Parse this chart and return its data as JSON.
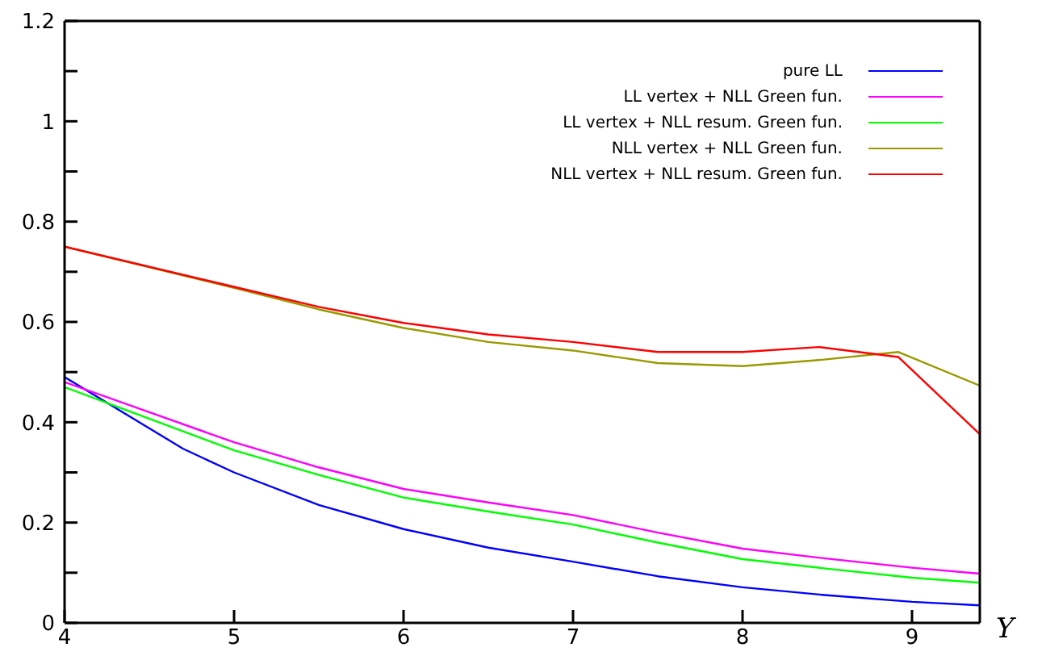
{
  "chart_data": {
    "type": "line",
    "xlabel": "Y",
    "xlim": [
      4,
      9.4
    ],
    "xticks": [
      4,
      5,
      6,
      7,
      8,
      9
    ],
    "ylim": [
      0,
      1.2
    ],
    "yticks": [
      0,
      {
        "value": 0.1,
        "label": null
      },
      0.2,
      {
        "value": 0.3,
        "label": null
      },
      0.4,
      {
        "value": 0.5,
        "label": null
      },
      0.6,
      {
        "value": 0.7,
        "label": null
      },
      0.8,
      {
        "value": 0.9,
        "label": null
      },
      1,
      {
        "value": 1.1,
        "label": null
      },
      1.2
    ],
    "legend": "top right",
    "marker": "none",
    "line_style": "solid",
    "series": [
      {
        "name": "pure LL",
        "color": "#0000ff",
        "x": [
          4,
          4.7,
          5,
          5.5,
          6,
          6.5,
          7,
          7.5,
          8,
          8.5,
          9,
          9.4
        ],
        "values": [
          0.49,
          0.347,
          0.3,
          0.235,
          0.187,
          0.15,
          0.122,
          0.093,
          0.071,
          0.055,
          0.042,
          0.035
        ]
      },
      {
        "name": "LL vertex + NLL Green fun.",
        "color": "#ff00ff",
        "x": [
          4,
          5,
          5.5,
          6,
          6.5,
          7,
          7.5,
          8,
          8.5,
          9,
          9.4
        ],
        "values": [
          0.48,
          0.36,
          0.31,
          0.267,
          0.24,
          0.215,
          0.18,
          0.148,
          0.128,
          0.11,
          0.098
        ]
      },
      {
        "name": "LL vertex + NLL resum. Green fun.",
        "color": "#00ff00",
        "x": [
          4,
          5,
          5.5,
          6,
          6.5,
          7,
          7.5,
          8,
          8.5,
          9,
          9.4
        ],
        "values": [
          0.47,
          0.344,
          0.295,
          0.25,
          0.222,
          0.196,
          0.16,
          0.127,
          0.108,
          0.09,
          0.08
        ]
      },
      {
        "name": "NLL vertex + NLL Green fun.",
        "color": "#999900",
        "x": [
          4,
          5,
          5.5,
          6,
          6.5,
          7,
          7.5,
          8,
          8.45,
          8.92,
          9.4
        ],
        "values": [
          0.75,
          0.668,
          0.625,
          0.588,
          0.56,
          0.543,
          0.518,
          0.512,
          0.524,
          0.54,
          0.473
        ]
      },
      {
        "name": "NLL vertex + NLL resum. Green fun.",
        "color": "#ff0000",
        "x": [
          4,
          5,
          5.5,
          6,
          6.5,
          7,
          7.5,
          8,
          8.45,
          8.92,
          9.4
        ],
        "values": [
          0.75,
          0.67,
          0.63,
          0.598,
          0.575,
          0.56,
          0.54,
          0.54,
          0.55,
          0.53,
          0.376
        ]
      }
    ]
  }
}
